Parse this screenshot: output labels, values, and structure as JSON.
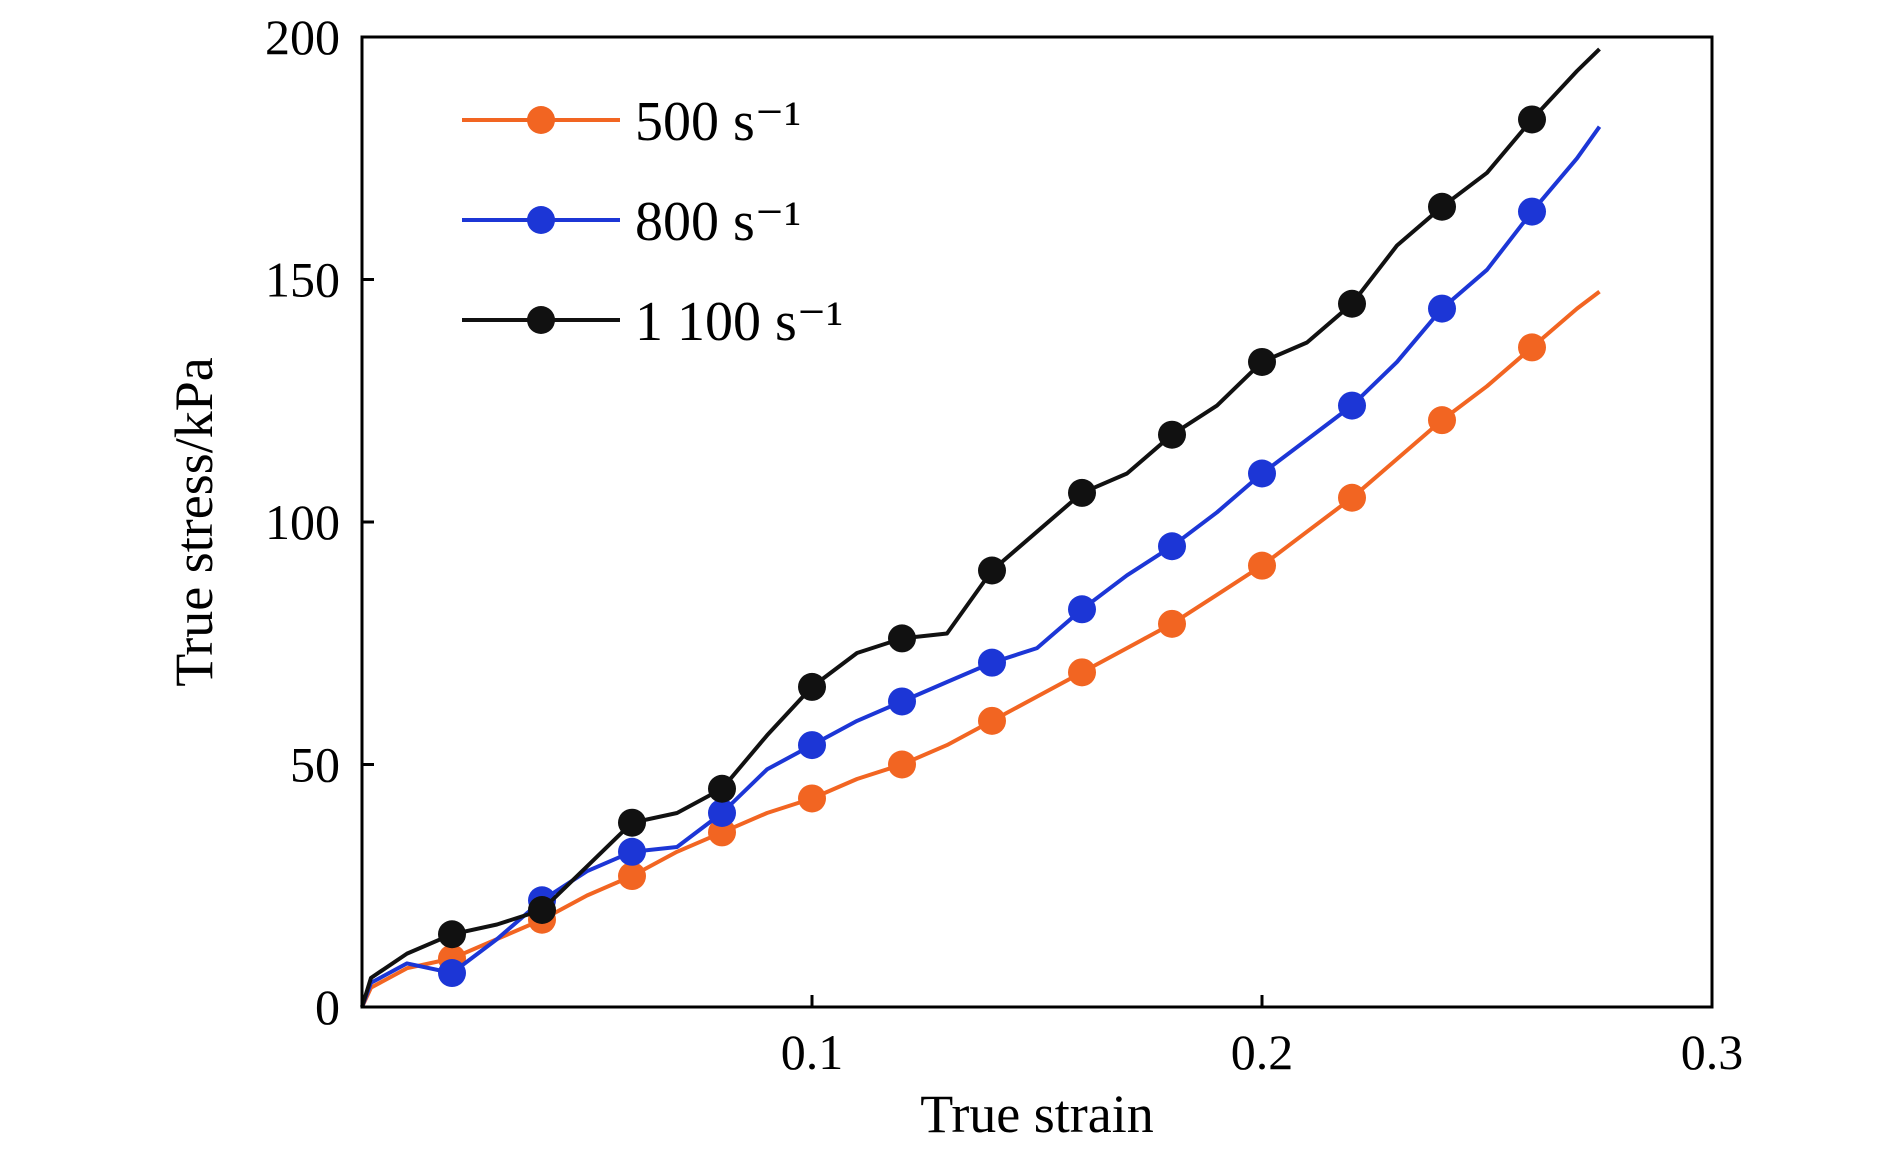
{
  "chart_data": {
    "type": "line",
    "xlabel": "True strain",
    "ylabel": "True stress/kPa",
    "xlim": [
      0,
      0.3
    ],
    "ylim": [
      0,
      200
    ],
    "x_ticks": [
      0.1,
      0.2,
      0.3
    ],
    "x_tick_labels": [
      "0.1",
      "0.2",
      "0.3"
    ],
    "y_ticks": [
      0,
      50,
      100,
      150,
      200
    ],
    "y_tick_labels": [
      "0",
      "50",
      "100",
      "150",
      "200"
    ],
    "grid": false,
    "legend_position": "top-left",
    "series": [
      {
        "name": "500 s⁻¹",
        "color": "#f26522",
        "marker": "circle",
        "line": [
          [
            0,
            0
          ],
          [
            0.002,
            4
          ],
          [
            0.01,
            8
          ],
          [
            0.02,
            10
          ],
          [
            0.03,
            14
          ],
          [
            0.04,
            18
          ],
          [
            0.05,
            23
          ],
          [
            0.06,
            27
          ],
          [
            0.07,
            32
          ],
          [
            0.08,
            36
          ],
          [
            0.09,
            40
          ],
          [
            0.1,
            43
          ],
          [
            0.11,
            47
          ],
          [
            0.12,
            50
          ],
          [
            0.13,
            54
          ],
          [
            0.14,
            59
          ],
          [
            0.15,
            64
          ],
          [
            0.16,
            69
          ],
          [
            0.17,
            74
          ],
          [
            0.18,
            79
          ],
          [
            0.19,
            85
          ],
          [
            0.2,
            91
          ],
          [
            0.21,
            98
          ],
          [
            0.22,
            105
          ],
          [
            0.23,
            113
          ],
          [
            0.24,
            121
          ],
          [
            0.25,
            128
          ],
          [
            0.26,
            136
          ],
          [
            0.27,
            144
          ],
          [
            0.275,
            147.5
          ]
        ],
        "markers": [
          [
            0.02,
            10
          ],
          [
            0.04,
            18
          ],
          [
            0.06,
            27
          ],
          [
            0.08,
            36
          ],
          [
            0.1,
            43
          ],
          [
            0.12,
            50
          ],
          [
            0.14,
            59
          ],
          [
            0.16,
            69
          ],
          [
            0.18,
            79
          ],
          [
            0.2,
            91
          ],
          [
            0.22,
            105
          ],
          [
            0.24,
            121
          ],
          [
            0.26,
            136
          ]
        ]
      },
      {
        "name": "800 s⁻¹",
        "color": "#1c36d6",
        "marker": "circle",
        "line": [
          [
            0,
            0
          ],
          [
            0.002,
            5
          ],
          [
            0.01,
            9
          ],
          [
            0.02,
            7
          ],
          [
            0.03,
            14
          ],
          [
            0.04,
            22
          ],
          [
            0.05,
            28
          ],
          [
            0.06,
            32
          ],
          [
            0.07,
            33
          ],
          [
            0.08,
            40
          ],
          [
            0.09,
            49
          ],
          [
            0.1,
            54
          ],
          [
            0.11,
            59
          ],
          [
            0.12,
            63
          ],
          [
            0.13,
            67
          ],
          [
            0.14,
            71
          ],
          [
            0.15,
            74
          ],
          [
            0.16,
            82
          ],
          [
            0.17,
            89
          ],
          [
            0.18,
            95
          ],
          [
            0.19,
            102
          ],
          [
            0.2,
            110
          ],
          [
            0.21,
            117
          ],
          [
            0.22,
            124
          ],
          [
            0.23,
            133
          ],
          [
            0.24,
            144
          ],
          [
            0.25,
            152
          ],
          [
            0.26,
            164
          ],
          [
            0.27,
            175
          ],
          [
            0.275,
            181.5
          ]
        ],
        "markers": [
          [
            0.02,
            7
          ],
          [
            0.04,
            22
          ],
          [
            0.06,
            32
          ],
          [
            0.08,
            40
          ],
          [
            0.1,
            54
          ],
          [
            0.12,
            63
          ],
          [
            0.14,
            71
          ],
          [
            0.16,
            82
          ],
          [
            0.18,
            95
          ],
          [
            0.2,
            110
          ],
          [
            0.22,
            124
          ],
          [
            0.24,
            144
          ],
          [
            0.26,
            164
          ]
        ]
      },
      {
        "name": "1 100 s⁻¹",
        "color": "#111111",
        "marker": "circle",
        "line": [
          [
            0,
            0
          ],
          [
            0.002,
            6
          ],
          [
            0.01,
            11
          ],
          [
            0.02,
            15
          ],
          [
            0.03,
            17
          ],
          [
            0.04,
            20
          ],
          [
            0.05,
            29
          ],
          [
            0.06,
            38
          ],
          [
            0.07,
            40
          ],
          [
            0.08,
            45
          ],
          [
            0.09,
            56
          ],
          [
            0.1,
            66
          ],
          [
            0.11,
            73
          ],
          [
            0.12,
            76
          ],
          [
            0.13,
            77
          ],
          [
            0.14,
            90
          ],
          [
            0.15,
            98
          ],
          [
            0.16,
            106
          ],
          [
            0.17,
            110
          ],
          [
            0.18,
            118
          ],
          [
            0.19,
            124
          ],
          [
            0.2,
            133
          ],
          [
            0.21,
            137
          ],
          [
            0.22,
            145
          ],
          [
            0.23,
            157
          ],
          [
            0.24,
            165
          ],
          [
            0.25,
            172
          ],
          [
            0.26,
            183
          ],
          [
            0.27,
            193
          ],
          [
            0.275,
            197.5
          ]
        ],
        "markers": [
          [
            0.02,
            15
          ],
          [
            0.04,
            20
          ],
          [
            0.06,
            38
          ],
          [
            0.08,
            45
          ],
          [
            0.1,
            66
          ],
          [
            0.12,
            76
          ],
          [
            0.14,
            90
          ],
          [
            0.16,
            106
          ],
          [
            0.18,
            118
          ],
          [
            0.2,
            133
          ],
          [
            0.22,
            145
          ],
          [
            0.24,
            165
          ],
          [
            0.26,
            183
          ]
        ]
      }
    ]
  }
}
